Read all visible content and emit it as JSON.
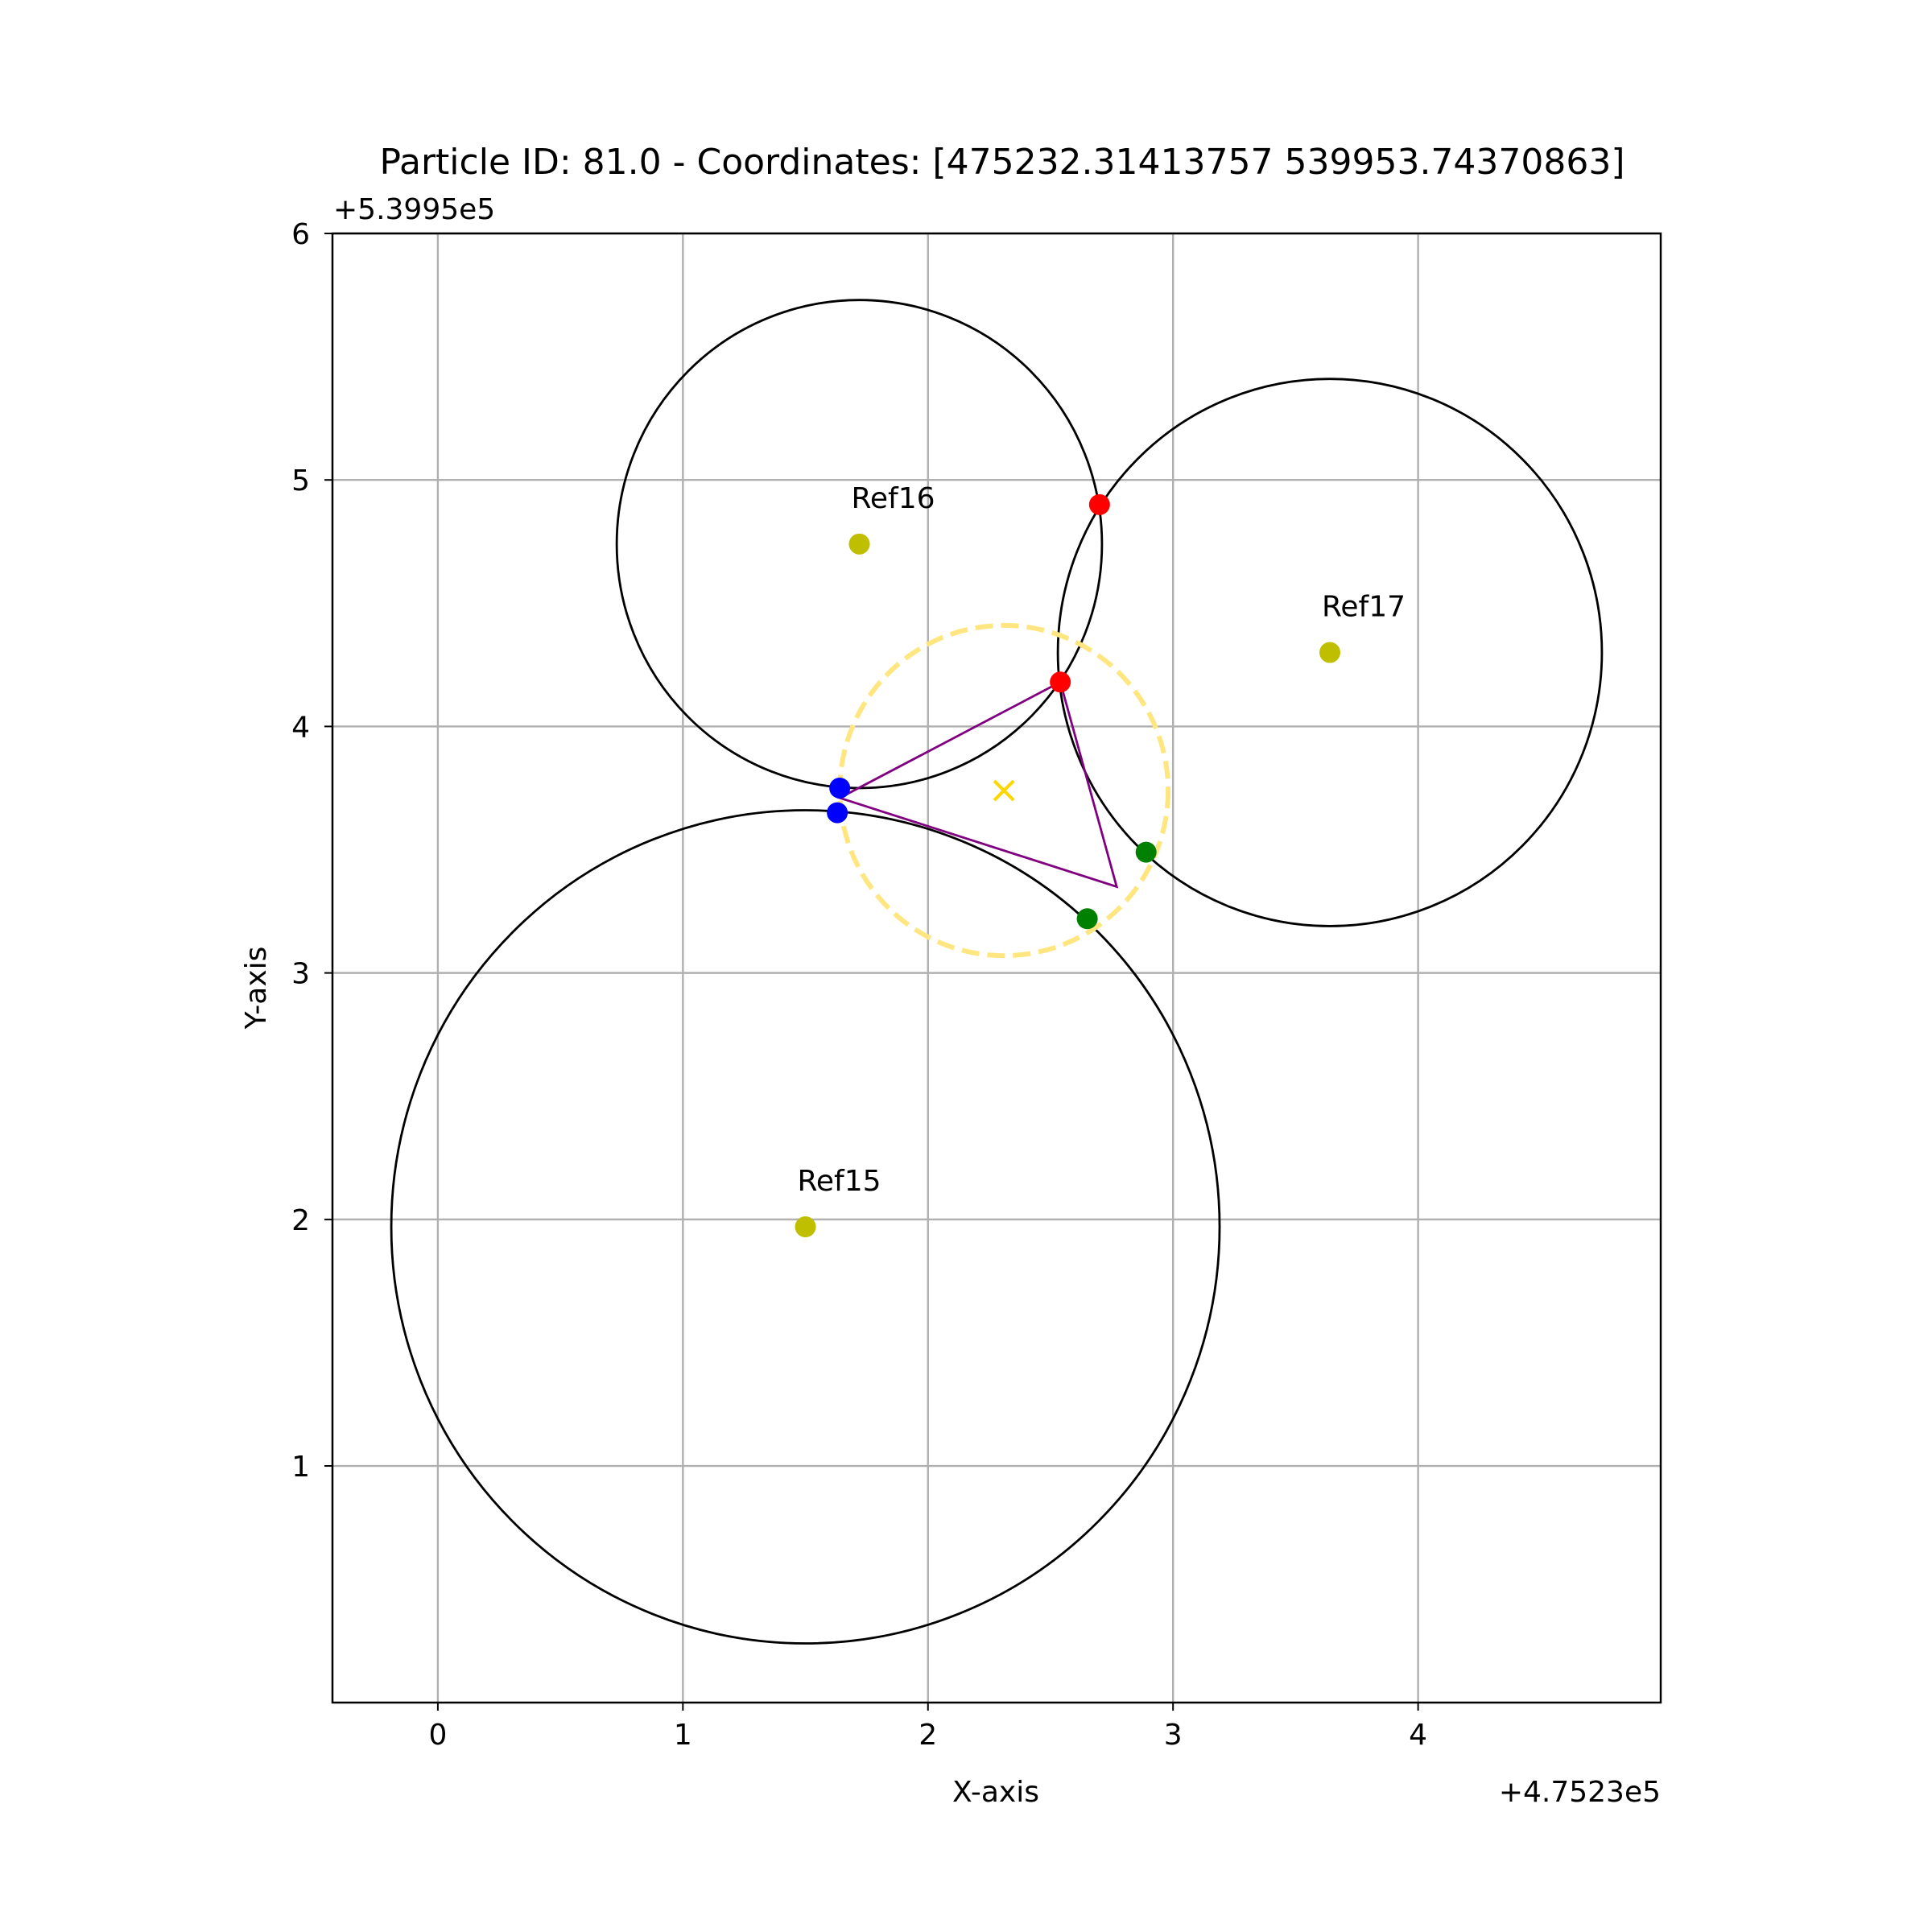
{
  "chart_data": {
    "type": "scatter",
    "title": "Particle ID: 81.0 - Coordinates: [475232.31413757 539953.74370863]",
    "xlabel": "X-axis",
    "ylabel": "Y-axis",
    "x_offset_label": "+4.7523e5",
    "y_offset_label": "+5.3995e5",
    "xlim": [
      -0.43,
      4.99
    ],
    "ylim": [
      0.04,
      6.0
    ],
    "x_ticks": [
      0,
      1,
      2,
      3,
      4
    ],
    "x_tick_labels": [
      "0",
      "1",
      "2",
      "3",
      "4"
    ],
    "y_ticks": [
      1,
      2,
      3,
      4,
      5,
      6
    ],
    "y_tick_labels": [
      "1",
      "2",
      "3",
      "4",
      "5",
      "6"
    ],
    "grid": true,
    "reference_points": [
      {
        "label": "Ref15",
        "x": 1.5,
        "y": 1.97,
        "radius": 1.69,
        "color": "#bfbf00"
      },
      {
        "label": "Ref16",
        "x": 1.72,
        "y": 4.74,
        "radius": 0.99,
        "color": "#bfbf00"
      },
      {
        "label": "Ref17",
        "x": 3.64,
        "y": 4.3,
        "radius": 1.11,
        "color": "#bfbf00"
      }
    ],
    "intersection_points": [
      {
        "x": 2.7,
        "y": 4.9,
        "color": "#ff0000"
      },
      {
        "x": 2.54,
        "y": 4.18,
        "color": "#ff0000"
      },
      {
        "x": 1.64,
        "y": 3.75,
        "color": "#0000ff"
      },
      {
        "x": 1.63,
        "y": 3.65,
        "color": "#0000ff"
      },
      {
        "x": 2.89,
        "y": 3.49,
        "color": "#008000"
      },
      {
        "x": 2.65,
        "y": 3.22,
        "color": "#008000"
      }
    ],
    "triangle": {
      "points": [
        [
          2.54,
          4.18
        ],
        [
          1.64,
          3.71
        ],
        [
          2.77,
          3.35
        ]
      ],
      "color": "#800080"
    },
    "estimate": {
      "x": 2.31,
      "y": 3.74,
      "marker": "x",
      "color": "#ffd700"
    },
    "uncertainty_circle": {
      "x": 2.31,
      "y": 3.74,
      "radius": 0.67,
      "color": "#ffe680",
      "style": "dashed"
    }
  }
}
